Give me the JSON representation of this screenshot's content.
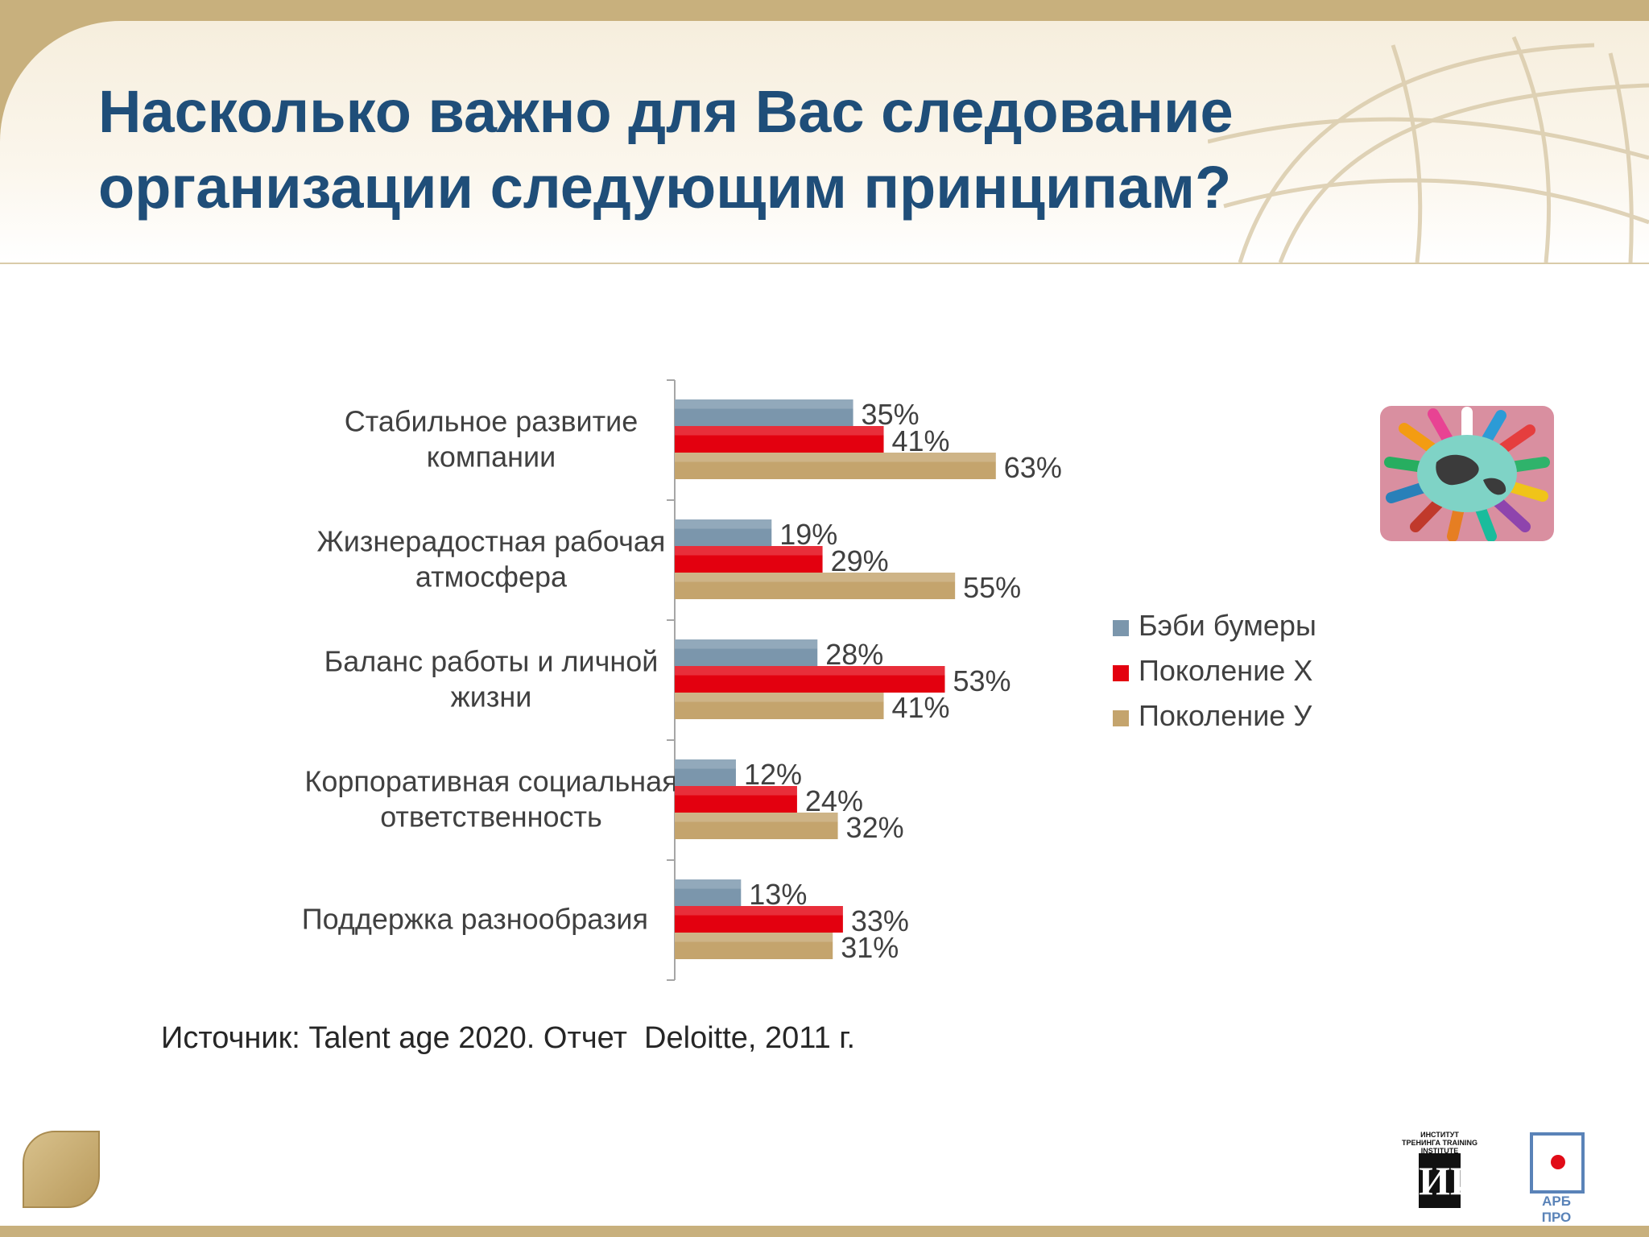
{
  "slide": {
    "title": "Насколько важно для Вас следование организации следующим принципам?",
    "source": "Источник: Talent age 2020. Отчет  Deloitte, 2011 г.",
    "logos": {
      "training_institute": "ИНСТИТУТ ТРЕНИНГА TRAINING INSTITUTE",
      "training_institute_mark": "ИИ",
      "arb": "АРБ ПРО"
    }
  },
  "colors": {
    "title": "#1f4e79",
    "frame": "#c8b07d",
    "series": [
      "#7b96ac",
      "#e3000f",
      "#c4a46d"
    ]
  },
  "chart_data": {
    "type": "bar",
    "orientation": "horizontal",
    "categories": [
      [
        "Стабильное развитие",
        "компании"
      ],
      [
        "Жизнерадостная рабочая",
        "атмосфера"
      ],
      [
        "Баланс работы и личной",
        "жизни"
      ],
      [
        "Корпоративная социальная",
        "ответственность"
      ],
      [
        "Поддержка разнообразия"
      ]
    ],
    "series": [
      {
        "name": "Бэби бумеры",
        "values": [
          35,
          19,
          28,
          12,
          13
        ]
      },
      {
        "name": "Поколение Х",
        "values": [
          41,
          29,
          53,
          24,
          33
        ]
      },
      {
        "name": "Поколение У",
        "values": [
          63,
          55,
          41,
          32,
          31
        ]
      }
    ],
    "value_suffix": "%",
    "xlim": [
      0,
      100
    ],
    "grid": false,
    "legend_position": "right",
    "title": "",
    "xlabel": "",
    "ylabel": ""
  }
}
